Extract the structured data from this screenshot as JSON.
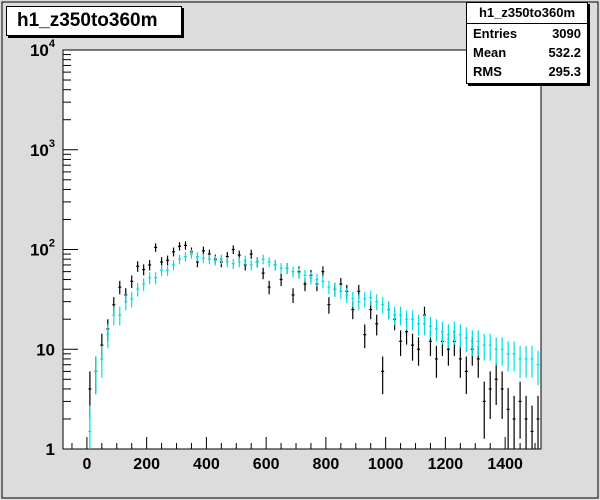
{
  "title": "h1_z350to360m",
  "stats": {
    "name": "h1_z350to360m",
    "rows": [
      {
        "key": "Entries",
        "value": "3090"
      },
      {
        "key": "Mean",
        "value": "532.2"
      },
      {
        "key": "RMS",
        "value": "295.3"
      }
    ]
  },
  "chart_data": {
    "type": "scatter",
    "title": "h1_z350to360m",
    "xlabel": "",
    "ylabel": "",
    "xlim": [
      -80,
      1520
    ],
    "ylim": [
      1,
      10000
    ],
    "ylog": true,
    "grid": false,
    "legend": "none",
    "xticks": [
      {
        "value": 0,
        "label": "0"
      },
      {
        "value": 200,
        "label": "200"
      },
      {
        "value": 400,
        "label": "400"
      },
      {
        "value": 600,
        "label": "600"
      },
      {
        "value": 800,
        "label": "800"
      },
      {
        "value": 1000,
        "label": "1000"
      },
      {
        "value": 1200,
        "label": "1200"
      },
      {
        "value": 1400,
        "label": "1400"
      }
    ],
    "yticks": [
      {
        "value": 1,
        "base": "1",
        "exp": ""
      },
      {
        "value": 10,
        "base": "10",
        "exp": ""
      },
      {
        "value": 100,
        "base": "10",
        "exp": "2"
      },
      {
        "value": 1000,
        "base": "10",
        "exp": "3"
      },
      {
        "value": 10000,
        "base": "10",
        "exp": "4"
      }
    ],
    "bin_width": 20,
    "series": [
      {
        "color": "#000000",
        "x": [
          10,
          30,
          50,
          70,
          90,
          110,
          130,
          150,
          170,
          190,
          210,
          230,
          250,
          270,
          290,
          310,
          330,
          350,
          370,
          390,
          410,
          430,
          450,
          470,
          490,
          510,
          530,
          550,
          570,
          590,
          610,
          630,
          650,
          670,
          690,
          710,
          730,
          750,
          770,
          790,
          810,
          830,
          850,
          870,
          890,
          910,
          930,
          950,
          970,
          990,
          1010,
          1030,
          1050,
          1070,
          1090,
          1110,
          1130,
          1150,
          1170,
          1190,
          1210,
          1230,
          1250,
          1270,
          1290,
          1310,
          1330,
          1350,
          1370,
          1390,
          1410,
          1430,
          1450,
          1470,
          1490,
          1510
        ],
        "y": [
          4,
          6,
          11,
          16,
          28,
          42,
          35,
          48,
          68,
          63,
          70,
          105,
          75,
          78,
          95,
          108,
          110,
          95,
          75,
          97,
          90,
          80,
          75,
          85,
          100,
          88,
          70,
          90,
          75,
          58,
          42,
          70,
          50,
          65,
          35,
          60,
          45,
          55,
          45,
          60,
          28,
          40,
          45,
          38,
          25,
          38,
          14,
          25,
          18,
          6,
          25,
          20,
          12,
          15,
          11,
          10,
          22,
          12,
          8,
          12,
          10,
          12,
          8,
          6,
          10,
          8,
          3,
          4,
          5,
          4,
          2.5,
          2,
          3,
          2,
          1.5,
          2
        ]
      },
      {
        "color": "#00e0e0",
        "x": [
          10,
          30,
          50,
          70,
          90,
          110,
          130,
          150,
          170,
          190,
          210,
          230,
          250,
          270,
          290,
          310,
          330,
          350,
          370,
          390,
          410,
          430,
          450,
          470,
          490,
          510,
          530,
          550,
          570,
          590,
          610,
          630,
          650,
          670,
          690,
          710,
          730,
          750,
          770,
          790,
          810,
          830,
          850,
          870,
          890,
          910,
          930,
          950,
          970,
          990,
          1010,
          1030,
          1050,
          1070,
          1090,
          1110,
          1130,
          1150,
          1170,
          1190,
          1210,
          1230,
          1250,
          1270,
          1290,
          1310,
          1330,
          1350,
          1370,
          1390,
          1410,
          1430,
          1450,
          1470,
          1490,
          1510
        ],
        "y": [
          1.5,
          6,
          8,
          14,
          22,
          22,
          30,
          32,
          40,
          45,
          52,
          52,
          62,
          62,
          70,
          80,
          85,
          90,
          85,
          82,
          80,
          78,
          80,
          75,
          72,
          75,
          78,
          70,
          75,
          80,
          75,
          70,
          65,
          65,
          60,
          58,
          55,
          52,
          50,
          48,
          42,
          40,
          38,
          35,
          32,
          30,
          32,
          33,
          30,
          28,
          25,
          22,
          22,
          20,
          20,
          18,
          18,
          17,
          16,
          15,
          14,
          15,
          14,
          13,
          12,
          12,
          11,
          11,
          10,
          10,
          9,
          9,
          8,
          8,
          8,
          7
        ]
      }
    ]
  }
}
